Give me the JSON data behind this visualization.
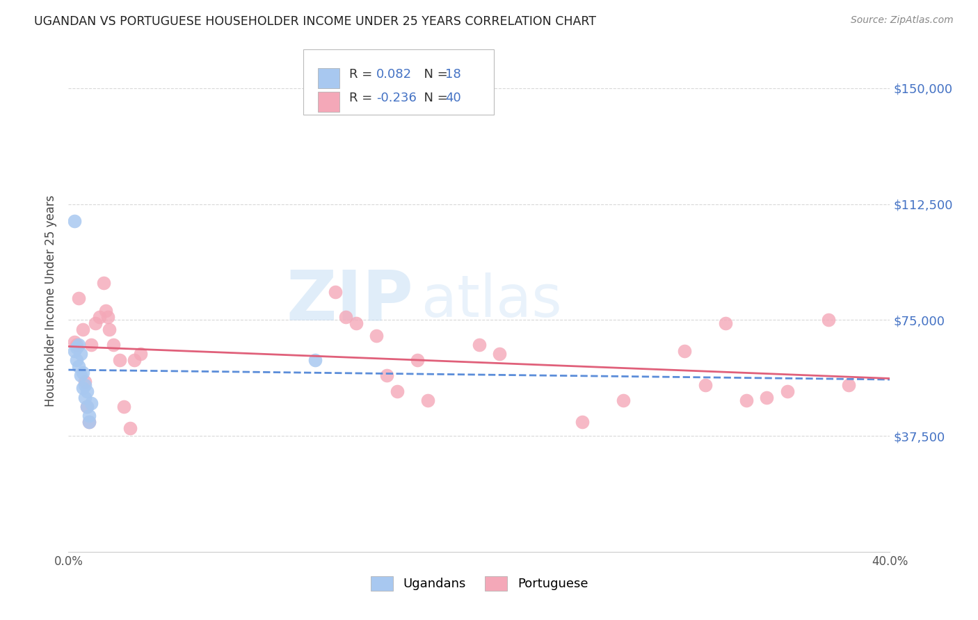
{
  "title": "UGANDAN VS PORTUGUESE HOUSEHOLDER INCOME UNDER 25 YEARS CORRELATION CHART",
  "source": "Source: ZipAtlas.com",
  "ylabel": "Householder Income Under 25 years",
  "xlim": [
    0.0,
    0.4
  ],
  "ylim": [
    0,
    162500
  ],
  "yticks": [
    37500,
    75000,
    112500,
    150000
  ],
  "ytick_labels": [
    "$37,500",
    "$75,000",
    "$112,500",
    "$150,000"
  ],
  "xticks": [
    0.0,
    0.05,
    0.1,
    0.15,
    0.2,
    0.25,
    0.3,
    0.35,
    0.4
  ],
  "xtick_labels": [
    "0.0%",
    "",
    "",
    "",
    "",
    "",
    "",
    "",
    "40.0%"
  ],
  "ugandan_color": "#a8c8f0",
  "portuguese_color": "#f4a8b8",
  "trendline_ugandan_color": "#5b8dd9",
  "trendline_portuguese_color": "#e0607a",
  "R_ugandan": 0.082,
  "N_ugandan": 18,
  "R_portuguese": -0.236,
  "N_portuguese": 40,
  "ugandan_x": [
    0.003,
    0.004,
    0.004,
    0.005,
    0.005,
    0.006,
    0.006,
    0.007,
    0.007,
    0.008,
    0.008,
    0.009,
    0.009,
    0.01,
    0.01,
    0.011,
    0.12,
    0.003
  ],
  "ugandan_y": [
    65000,
    66000,
    62000,
    67000,
    60000,
    64000,
    57000,
    58000,
    53000,
    54000,
    50000,
    52000,
    47000,
    44000,
    42000,
    48000,
    62000,
    107000
  ],
  "portuguese_x": [
    0.003,
    0.004,
    0.005,
    0.007,
    0.008,
    0.009,
    0.01,
    0.011,
    0.013,
    0.015,
    0.017,
    0.018,
    0.019,
    0.02,
    0.022,
    0.025,
    0.027,
    0.03,
    0.032,
    0.035,
    0.13,
    0.135,
    0.14,
    0.15,
    0.155,
    0.16,
    0.17,
    0.175,
    0.2,
    0.21,
    0.25,
    0.27,
    0.3,
    0.31,
    0.32,
    0.33,
    0.34,
    0.35,
    0.37,
    0.38
  ],
  "portuguese_y": [
    68000,
    67000,
    82000,
    72000,
    55000,
    47000,
    42000,
    67000,
    74000,
    76000,
    87000,
    78000,
    76000,
    72000,
    67000,
    62000,
    47000,
    40000,
    62000,
    64000,
    84000,
    76000,
    74000,
    70000,
    57000,
    52000,
    62000,
    49000,
    67000,
    64000,
    42000,
    49000,
    65000,
    54000,
    74000,
    49000,
    50000,
    52000,
    75000,
    54000
  ],
  "watermark_zip": "ZIP",
  "watermark_atlas": "atlas",
  "background_color": "#ffffff",
  "grid_color": "#d8d8d8",
  "legend_label_color": "#4472c4",
  "legend_text_color": "#333333"
}
